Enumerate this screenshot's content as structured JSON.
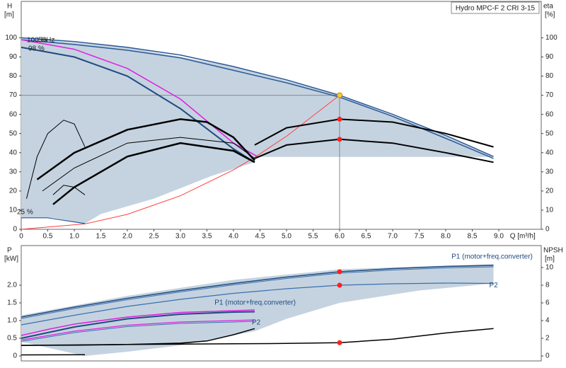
{
  "chart_data": [
    {
      "type": "line",
      "title": "Hydro MPC-F 2 CRI 3-15",
      "ylabel": "H",
      "yunit": "[m]",
      "y2label": "eta",
      "y2unit": "[%]",
      "xlabel": "Q [m³/h]",
      "annotations": [
        "100 %",
        "50Hz",
        "98 %",
        "25 %"
      ],
      "xlim": [
        0,
        9.8
      ],
      "ylim": [
        0,
        119
      ],
      "y2lim": [
        0,
        119
      ],
      "xticks": [
        0,
        0.5,
        {
          "value": 1,
          "label": "1.0"
        },
        1.5,
        {
          "value": 2,
          "label": "2.0"
        },
        2.5,
        {
          "value": 3,
          "label": "3.0"
        },
        3.5,
        {
          "value": 4,
          "label": "4.0"
        },
        4.5,
        {
          "value": 5,
          "label": "5.0"
        },
        5.5,
        {
          "value": 6,
          "label": "6.0"
        },
        6.5,
        {
          "value": 7,
          "label": "7.0"
        },
        7.5,
        {
          "value": 8,
          "label": "8.0"
        },
        8.5,
        {
          "value": 9,
          "label": "9.0"
        }
      ],
      "yticks": [
        0,
        10,
        20,
        30,
        40,
        50,
        60,
        70,
        80,
        90,
        100
      ],
      "y2ticks": [
        0,
        10,
        20,
        30,
        40,
        50,
        60,
        70,
        80,
        90,
        100
      ],
      "series": [
        {
          "color": "#c5d3e0",
          "fill": true,
          "x": [
            0,
            2,
            4,
            6,
            8,
            8.9,
            8.9,
            4.4,
            4.4,
            3.6,
            2.5,
            1.5,
            1.2,
            0.6,
            0
          ],
          "values": [
            100,
            95,
            85,
            70,
            49,
            38,
            37.8,
            37.8,
            35,
            28,
            16,
            8,
            3,
            6,
            6
          ]
        },
        {
          "color": "#888888",
          "line_width": 1,
          "x": [
            0,
            6
          ],
          "values": [
            70,
            70
          ]
        },
        {
          "color": "#888888",
          "line_width": 1,
          "x": [
            6,
            6
          ],
          "values": [
            70,
            0
          ]
        },
        {
          "color": "#ff4040",
          "line_width": 1,
          "x": [
            0,
            1.2,
            2,
            3,
            4,
            4.4,
            5,
            6
          ],
          "values": [
            0,
            2.8,
            7.8,
            17.5,
            31,
            37.6,
            48.6,
            70
          ]
        },
        {
          "color": "#2b5a96",
          "line_width": 1.5,
          "x": [
            0,
            1,
            2,
            3,
            4,
            5,
            6,
            7,
            8,
            8.9
          ],
          "values": [
            100,
            98,
            95,
            91,
            85,
            78,
            70,
            60,
            49,
            38
          ]
        },
        {
          "color": "#2b5a96",
          "line_width": 1.5,
          "x": [
            0,
            1,
            2,
            3,
            4,
            5,
            6,
            7,
            8,
            8.9
          ],
          "values": [
            99,
            96.5,
            93.5,
            89.5,
            83,
            76.5,
            69,
            59,
            47.5,
            37
          ]
        },
        {
          "color": "#e020e0",
          "line_width": 1.5,
          "x": [
            0,
            1,
            2,
            3,
            4,
            4.45
          ],
          "values": [
            99,
            94,
            84,
            68,
            45,
            38
          ]
        },
        {
          "color": "#1f4a80",
          "line_width": 2,
          "x": [
            0,
            1,
            2,
            3,
            4,
            4.4
          ],
          "values": [
            95,
            90,
            80,
            63,
            42,
            35
          ]
        },
        {
          "color": "#000000",
          "line_width": 2.5,
          "x": [
            0.3,
            1,
            2,
            3,
            3.5,
            4,
            4.4
          ],
          "values": [
            26,
            40,
            52,
            57.5,
            56,
            48,
            36
          ]
        },
        {
          "color": "#000000",
          "line_width": 2.5,
          "x": [
            0.6,
            1,
            2,
            3,
            4,
            4.4
          ],
          "values": [
            13,
            22,
            38,
            45,
            41,
            35
          ]
        },
        {
          "color": "#000000",
          "line_width": 1,
          "x": [
            0.4,
            1,
            2,
            3,
            4,
            4.4
          ],
          "values": [
            20,
            32,
            45,
            48,
            45,
            37
          ]
        },
        {
          "color": "#000000",
          "line_width": 2,
          "x": [
            4.4,
            5,
            6,
            7,
            8,
            8.9
          ],
          "values": [
            37,
            44,
            47,
            45,
            40,
            35
          ]
        },
        {
          "color": "#000000",
          "line_width": 2,
          "x": [
            4.4,
            5,
            6,
            7,
            8,
            8.9
          ],
          "values": [
            44,
            53,
            57.5,
            56,
            50,
            43
          ]
        },
        {
          "color": "#000000",
          "line_width": 1,
          "x": [
            0.1,
            0.3,
            0.5,
            0.8,
            1,
            1.2
          ],
          "values": [
            16,
            38,
            50,
            57,
            55,
            43
          ]
        },
        {
          "color": "#000000",
          "line_width": 1,
          "x": [
            0.6,
            0.8,
            1,
            1.2
          ],
          "values": [
            18,
            23,
            22,
            18
          ]
        },
        {
          "color": "#2b5a96",
          "line_width": 1.2,
          "x": [
            0,
            0.5,
            1.2
          ],
          "values": [
            6,
            6,
            3
          ]
        },
        {
          "marker": true,
          "colors": [
            "#ffcc33",
            "#ff2020",
            "#ff2020"
          ],
          "x": [
            6,
            6,
            6
          ],
          "values": [
            70,
            57.5,
            47
          ]
        }
      ]
    },
    {
      "type": "line",
      "ylabel": "P",
      "yunit": "[kW]",
      "y2label": "NPSH",
      "y2unit": "[m]",
      "xlim": [
        0,
        9.8
      ],
      "ylim": [
        -0.14,
        3.12
      ],
      "y2lim": [
        -0.56,
        12.48
      ],
      "yticks": [
        0,
        0.5,
        {
          "value": 1,
          "label": "1.0"
        },
        1.5,
        {
          "value": 2,
          "label": "2.0"
        }
      ],
      "y2ticks": [
        0,
        2,
        4,
        6,
        8,
        10
      ],
      "series": [
        {
          "color": "#c5d3e0",
          "fill": true,
          "x": [
            0,
            2,
            4,
            6,
            8.9,
            8.9,
            7.5,
            6,
            5,
            4.4,
            3,
            2,
            1.2,
            0
          ],
          "values": [
            1.15,
            1.7,
            2.15,
            2.45,
            2.6,
            2.05,
            1.85,
            1.5,
            1.05,
            0.7,
            0.3,
            0.12,
            0,
            0.4
          ]
        },
        {
          "name": "P1 (motor+freq.converter)",
          "color": "#1f4a80",
          "line_width": 1.5,
          "x": [
            0,
            1,
            2,
            3,
            4,
            5,
            6,
            7,
            8,
            8.9
          ],
          "values": [
            1.1,
            1.38,
            1.63,
            1.85,
            2.05,
            2.23,
            2.38,
            2.47,
            2.53,
            2.56
          ]
        },
        {
          "color": "#3a6fb0",
          "line_width": 1,
          "x": [
            0,
            1,
            2,
            3,
            4,
            5,
            6,
            7,
            8,
            8.9
          ],
          "values": [
            1.06,
            1.34,
            1.59,
            1.81,
            2.01,
            2.19,
            2.34,
            2.43,
            2.49,
            2.52
          ]
        },
        {
          "name": "P2",
          "color": "#3a6fb0",
          "line_width": 1.2,
          "x": [
            0,
            1,
            2,
            3,
            4,
            5,
            6,
            7,
            8,
            8.9
          ],
          "values": [
            0.88,
            1.15,
            1.4,
            1.6,
            1.77,
            1.9,
            2.0,
            2.04,
            2.06,
            2.05
          ]
        },
        {
          "name": "P1 (motor+freq.converter)",
          "color": "#e020e0",
          "line_width": 1.5,
          "x": [
            0,
            0.5,
            1,
            2,
            3,
            4,
            4.4
          ],
          "values": [
            0.58,
            0.75,
            0.9,
            1.1,
            1.23,
            1.28,
            1.3
          ]
        },
        {
          "color": "#1f4a80",
          "line_width": 2,
          "x": [
            0,
            1,
            2,
            3,
            4,
            4.4
          ],
          "values": [
            0.5,
            0.82,
            1.05,
            1.18,
            1.24,
            1.25
          ]
        },
        {
          "name": "P2",
          "color": "#e020e0",
          "line_width": 1.2,
          "x": [
            0,
            1,
            2,
            3,
            4,
            4.4
          ],
          "values": [
            0.45,
            0.7,
            0.87,
            0.96,
            1.0,
            1.02
          ]
        },
        {
          "color": "#3a6fb0",
          "line_width": 1,
          "x": [
            0,
            1,
            2,
            3,
            4,
            4.4
          ],
          "values": [
            0.41,
            0.66,
            0.83,
            0.92,
            0.96,
            0.98
          ]
        },
        {
          "axis": "y2",
          "color": "#000000",
          "line_width": 1.5,
          "x": [
            0,
            2,
            4,
            5,
            6,
            7,
            8,
            8.9
          ],
          "values": [
            1.2,
            1.3,
            1.38,
            1.42,
            1.5,
            1.9,
            2.6,
            3.1
          ]
        },
        {
          "axis": "y2",
          "color": "#000000",
          "line_width": 1.5,
          "x": [
            0,
            1,
            2,
            3,
            3.5,
            4,
            4.4
          ],
          "values": [
            1.2,
            1.22,
            1.3,
            1.45,
            1.7,
            2.4,
            3.1
          ]
        },
        {
          "axis": "y2",
          "color": "#000000",
          "line_width": 1.5,
          "x": [
            0,
            1.2
          ],
          "values": [
            0.12,
            0.14
          ]
        },
        {
          "marker": true,
          "colors": [
            "#ff2020",
            "#ff2020"
          ],
          "x": [
            6,
            6
          ],
          "values": [
            2.38,
            2.0
          ]
        },
        {
          "axis": "y2",
          "marker": true,
          "colors": [
            "#ff2020"
          ],
          "x": [
            6
          ],
          "values": [
            1.5
          ]
        }
      ]
    }
  ]
}
